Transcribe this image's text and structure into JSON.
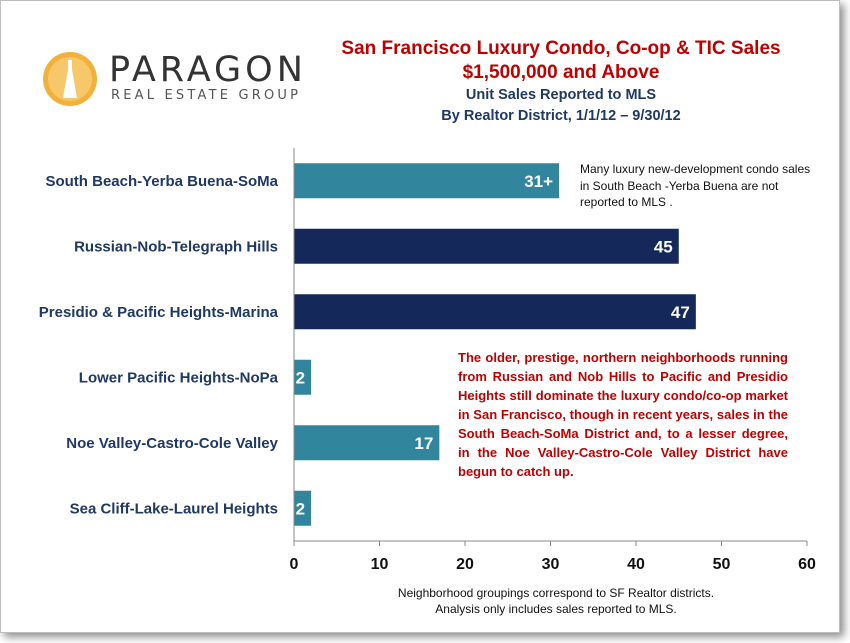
{
  "logo": {
    "name": "PARAGON",
    "tagline": "REAL ESTATE GROUP"
  },
  "titles": {
    "line1": "San Francisco Luxury Condo, Co-op & TIC Sales",
    "line2": "$1,500,000 and Above",
    "line3": "Unit Sales Reported to MLS",
    "line4": "By Realtor District, 1/1/12 – 9/30/12"
  },
  "notes": {
    "top": "Many luxury new-development condo sales in South Beach -Yerba Buena are not reported to MLS .",
    "red": "The older, prestige, northern neighborhoods running from Russian and Nob Hills to Pacific and Presidio Heights still dominate the luxury condo/co-op market in San Francisco, though in recent years, sales in the South Beach-SoMa District and, to a lesser degree, in the Noe Valley-Castro-Cole Valley District have begun to catch up."
  },
  "footnote": {
    "line1": "Neighborhood groupings correspond to SF Realtor districts.",
    "line2": "Analysis only includes sales reported to MLS."
  },
  "colors": {
    "teal": "#31859c",
    "navy": "#14285a",
    "label_navy": "#1f3864",
    "red": "#c00000"
  },
  "chart_data": {
    "type": "bar",
    "orientation": "horizontal",
    "categories": [
      "South Beach-Yerba Buena-SoMa",
      "Russian-Nob-Telegraph Hills",
      "Presidio & Pacific Heights-Marina",
      "Lower Pacific Heights-NoPa",
      "Noe Valley-Castro-Cole Valley",
      "Sea Cliff-Lake-Laurel Heights"
    ],
    "values": [
      31,
      45,
      47,
      2,
      17,
      2
    ],
    "data_labels": [
      "31+",
      "45",
      "47",
      "2",
      "17",
      "2"
    ],
    "bar_colors": [
      "teal",
      "navy",
      "navy",
      "teal",
      "teal",
      "teal"
    ],
    "xlim": [
      0,
      60
    ],
    "xticks": [
      0,
      10,
      20,
      30,
      40,
      50,
      60
    ],
    "title": "",
    "xlabel": "",
    "ylabel": "",
    "grid": false,
    "legend": "none"
  }
}
